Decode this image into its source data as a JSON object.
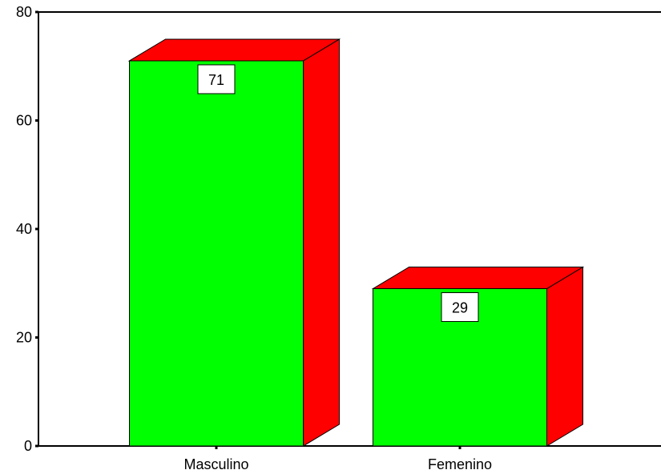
{
  "chart_data": {
    "type": "bar",
    "style": "3d",
    "categories": [
      "Masculino",
      "Femenino"
    ],
    "values": [
      71,
      29
    ],
    "data_labels": [
      "71",
      "29"
    ],
    "title": "",
    "xlabel": "",
    "ylabel": "",
    "ylim": [
      0,
      80
    ],
    "yticks": [
      0,
      20,
      40,
      60,
      80
    ],
    "ytick_labels": [
      "0",
      "20",
      "40",
      "60",
      "80"
    ],
    "grid": false,
    "legend": "none",
    "colors": {
      "front": "#00ff00",
      "top": "#ff0000",
      "side": "#ff0000",
      "outline": "#000000",
      "background": "#ffffff"
    }
  }
}
